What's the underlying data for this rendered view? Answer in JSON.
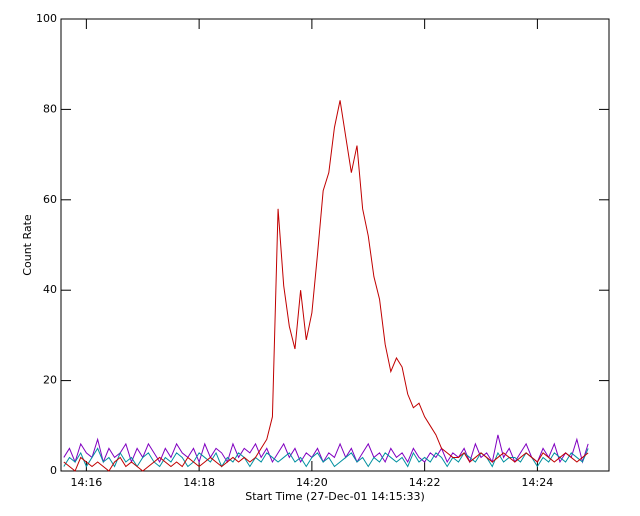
{
  "chart_data": {
    "type": "line",
    "x_label": "Start Time (27-Dec-01 14:15:33)",
    "y_label": "Count Rate",
    "xlim": [
      855.55,
      865.27
    ],
    "ylim": [
      0,
      100
    ],
    "xticks": [
      {
        "value": 856,
        "label": "14:16"
      },
      {
        "value": 858,
        "label": "14:18"
      },
      {
        "value": 860,
        "label": "14:20"
      },
      {
        "value": 862,
        "label": "14:22"
      },
      {
        "value": 864,
        "label": "14:24"
      }
    ],
    "yticks": [
      0,
      20,
      40,
      60,
      80,
      100
    ],
    "x": [
      855.6,
      855.7,
      855.8,
      855.9,
      856.0,
      856.1,
      856.2,
      856.3,
      856.4,
      856.5,
      856.6,
      856.7,
      856.8,
      856.9,
      857.0,
      857.1,
      857.2,
      857.3,
      857.4,
      857.5,
      857.6,
      857.7,
      857.8,
      857.9,
      858.0,
      858.1,
      858.2,
      858.3,
      858.4,
      858.5,
      858.6,
      858.7,
      858.8,
      858.9,
      859.0,
      859.1,
      859.2,
      859.3,
      859.4,
      859.5,
      859.6,
      859.7,
      859.8,
      859.9,
      860.0,
      860.1,
      860.2,
      860.3,
      860.4,
      860.5,
      860.6,
      860.7,
      860.8,
      860.9,
      861.0,
      861.1,
      861.2,
      861.3,
      861.4,
      861.5,
      861.6,
      861.7,
      861.8,
      861.9,
      862.0,
      862.1,
      862.2,
      862.3,
      862.4,
      862.5,
      862.6,
      862.7,
      862.8,
      862.9,
      863.0,
      863.1,
      863.2,
      863.3,
      863.4,
      863.5,
      863.6,
      863.7,
      863.8,
      863.9,
      864.0,
      864.1,
      864.2,
      864.3,
      864.4,
      864.5,
      864.6,
      864.7,
      864.8,
      864.9
    ],
    "series": [
      {
        "color": "#8000c0",
        "values": [
          3,
          5,
          2,
          6,
          4,
          3,
          7,
          2,
          5,
          3,
          4,
          6,
          2,
          5,
          3,
          6,
          4,
          2,
          5,
          3,
          6,
          4,
          3,
          5,
          2,
          6,
          3,
          5,
          4,
          2,
          6,
          3,
          5,
          4,
          6,
          3,
          5,
          2,
          4,
          6,
          3,
          5,
          2,
          4,
          3,
          5,
          2,
          4,
          3,
          6,
          3,
          5,
          2,
          4,
          6,
          3,
          4,
          2,
          5,
          3,
          4,
          2,
          5,
          3,
          2,
          4,
          3,
          5,
          2,
          4,
          3,
          5,
          2,
          6,
          3,
          4,
          2,
          8,
          3,
          5,
          2,
          4,
          6,
          3,
          2,
          5,
          3,
          6,
          2,
          4,
          3,
          7,
          2,
          6
        ]
      },
      {
        "color": "#0090a0",
        "values": [
          1,
          3,
          2,
          4,
          1,
          3,
          5,
          2,
          3,
          1,
          4,
          2,
          3,
          1,
          3,
          4,
          2,
          1,
          3,
          2,
          4,
          3,
          1,
          2,
          4,
          3,
          2,
          4,
          1,
          3,
          2,
          4,
          3,
          1,
          3,
          2,
          4,
          3,
          2,
          3,
          4,
          2,
          3,
          1,
          3,
          4,
          2,
          3,
          1,
          2,
          3,
          4,
          2,
          3,
          1,
          3,
          2,
          4,
          3,
          2,
          3,
          1,
          4,
          2,
          3,
          2,
          4,
          3,
          1,
          3,
          2,
          4,
          3,
          2,
          4,
          3,
          1,
          4,
          2,
          3,
          3,
          2,
          4,
          3,
          1,
          3,
          2,
          4,
          3,
          2,
          4,
          3,
          2,
          5
        ]
      },
      {
        "color": "#c00000",
        "values": [
          2,
          1,
          0,
          3,
          2,
          1,
          2,
          1,
          0,
          2,
          3,
          1,
          2,
          1,
          0,
          1,
          2,
          3,
          2,
          1,
          2,
          1,
          3,
          2,
          1,
          2,
          3,
          2,
          1,
          2,
          3,
          2,
          3,
          2,
          3,
          5,
          7,
          12,
          58,
          41,
          32,
          27,
          40,
          29,
          35,
          48,
          62,
          66,
          76,
          82,
          74,
          66,
          72,
          58,
          52,
          43,
          38,
          28,
          22,
          25,
          23,
          17,
          14,
          15,
          12,
          10,
          8,
          5,
          4,
          3,
          3,
          4,
          2,
          3,
          4,
          3,
          2,
          3,
          4,
          3,
          2,
          3,
          4,
          3,
          2,
          4,
          3,
          2,
          3,
          4,
          3,
          2,
          3,
          4
        ]
      }
    ]
  }
}
